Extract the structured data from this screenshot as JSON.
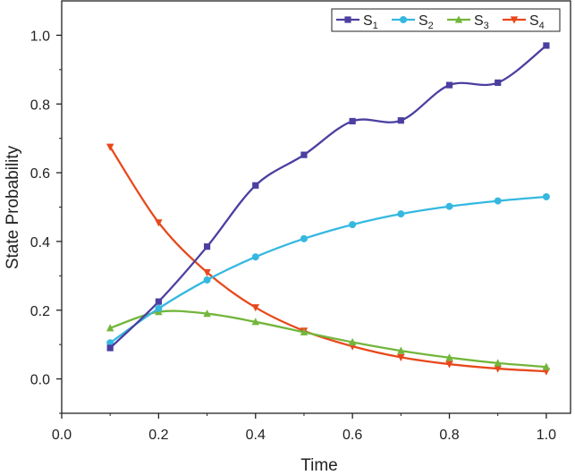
{
  "chart_data": {
    "type": "line",
    "title": "",
    "xlabel": "Time",
    "ylabel": "State Probability",
    "xlim": [
      0.0,
      1.05
    ],
    "ylim": [
      -0.1,
      1.1
    ],
    "xticks": [
      0.0,
      0.2,
      0.4,
      0.6,
      0.8,
      1.0
    ],
    "yticks": [
      0.0,
      0.2,
      0.4,
      0.6,
      0.8,
      1.0
    ],
    "xtick_labels": [
      "0.0",
      "0.2",
      "0.4",
      "0.6",
      "0.8",
      "1.0"
    ],
    "ytick_labels": [
      "0.0",
      "0.2",
      "0.4",
      "0.6",
      "0.8",
      "1.0"
    ],
    "grid": false,
    "legend_position": "top-right",
    "x": [
      0.1,
      0.2,
      0.3,
      0.4,
      0.5,
      0.6,
      0.7,
      0.8,
      0.9,
      1.0
    ],
    "series": [
      {
        "name": "S",
        "subscript": "1",
        "color": "#4b3fa0",
        "marker": "square",
        "values": [
          0.09,
          0.225,
          0.385,
          0.563,
          0.652,
          0.75,
          0.752,
          0.855,
          0.862,
          0.97
        ]
      },
      {
        "name": "S",
        "subscript": "2",
        "color": "#35b8e0",
        "marker": "circle",
        "values": [
          0.105,
          0.205,
          0.288,
          0.355,
          0.408,
          0.449,
          0.48,
          0.502,
          0.518,
          0.53
        ]
      },
      {
        "name": "S",
        "subscript": "3",
        "color": "#72b63b",
        "marker": "triangle-up",
        "values": [
          0.148,
          0.195,
          0.19,
          0.166,
          0.136,
          0.107,
          0.082,
          0.062,
          0.046,
          0.035
        ]
      },
      {
        "name": "S",
        "subscript": "4",
        "color": "#e8481c",
        "marker": "triangle-down",
        "values": [
          0.675,
          0.455,
          0.31,
          0.208,
          0.14,
          0.095,
          0.063,
          0.043,
          0.03,
          0.022
        ]
      }
    ]
  }
}
